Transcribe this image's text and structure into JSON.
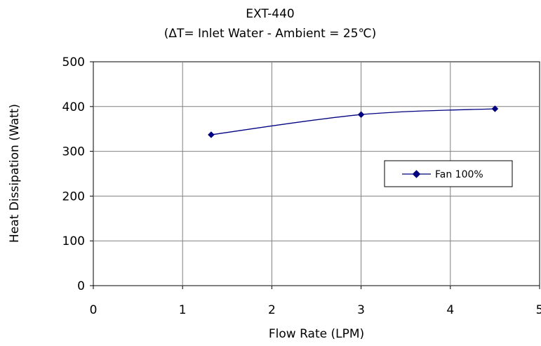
{
  "chart_data": {
    "type": "line",
    "title": "EXT-440",
    "subtitle": "(ΔT= Inlet Water - Ambient = 25℃)",
    "xlabel": "Flow Rate (LPM)",
    "ylabel": "Heat Dissipation (Watt)",
    "xlim": [
      0,
      5
    ],
    "ylim": [
      0,
      500
    ],
    "x_ticks": [
      "0",
      "1",
      "2",
      "3",
      "4",
      "5"
    ],
    "y_ticks": [
      "0",
      "100",
      "200",
      "300",
      "400",
      "500"
    ],
    "grid": true,
    "legend_position": "right",
    "series": [
      {
        "name": "Fan 100%",
        "color": "#000080",
        "marker": "diamond",
        "x": [
          1.32,
          3.0,
          4.5
        ],
        "y": [
          337,
          382,
          395
        ]
      }
    ]
  }
}
